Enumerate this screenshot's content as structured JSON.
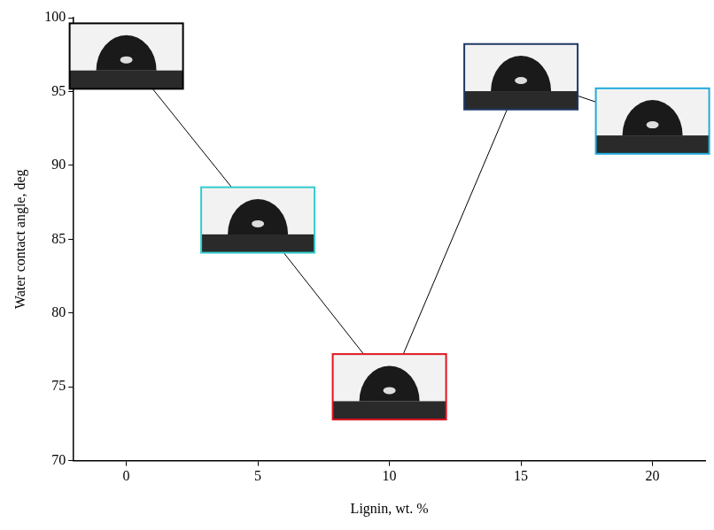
{
  "chart_data": {
    "type": "line",
    "x_label": "Lignin, wt. %",
    "y_label": "Water contact angle, deg",
    "x": [
      0,
      5,
      10,
      15,
      20
    ],
    "values": [
      97.4,
      86.3,
      75,
      96,
      93
    ],
    "color": "#000000",
    "colors": [
      "#000000",
      "#33cccc",
      "#e0141e",
      "#1f3864",
      "#22aadd"
    ],
    "xlim": [
      -2,
      22
    ],
    "xticks": [
      0,
      5,
      10,
      15,
      20
    ],
    "ylim": [
      70,
      100
    ],
    "yticks": [
      70,
      75,
      80,
      85,
      90,
      95,
      100
    ],
    "grid": false
  }
}
